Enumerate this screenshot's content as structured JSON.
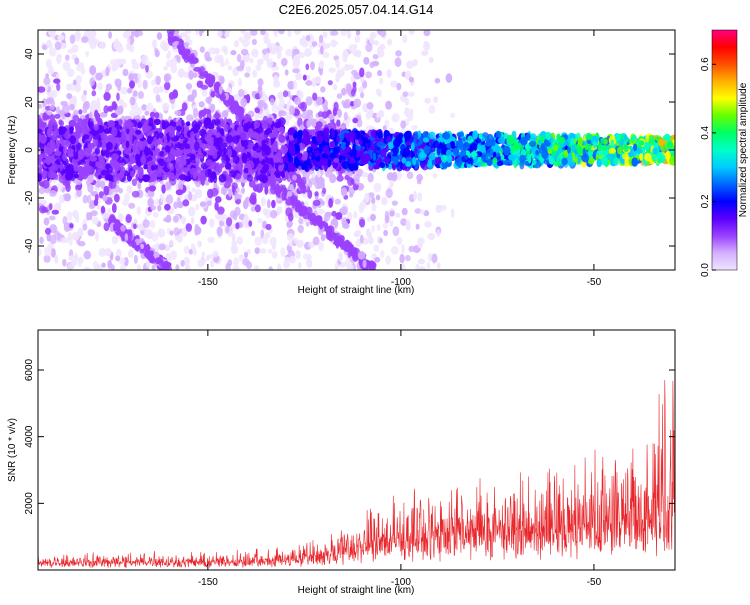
{
  "title": "C2E6.2025.057.04.14.G14",
  "chart_data": [
    {
      "type": "heatmap",
      "xlabel": "Height of straight line (km)",
      "ylabel": "Frequency (Hz)",
      "xlim": [
        -194,
        -29
      ],
      "ylim": [
        -50,
        50
      ],
      "x_ticks": [
        -150,
        -100,
        -50
      ],
      "y_ticks": [
        -40,
        -20,
        0,
        20,
        40
      ],
      "colorbar": {
        "label": "Normalized spectral amplitude",
        "range": [
          0,
          0.7
        ],
        "ticks": [
          0.0,
          0.2,
          0.4,
          0.6
        ],
        "colors": [
          "#f0e4ff",
          "#d4b0ff",
          "#9a40ff",
          "#5a00ff",
          "#0000ff",
          "#0066ff",
          "#00ccff",
          "#00ffc8",
          "#00ff64",
          "#64ff00",
          "#ffff00",
          "#ffb000",
          "#ff5000",
          "#ff0000",
          "#ff0080"
        ]
      },
      "features": {
        "main_band_center_hz": 0,
        "main_band_halfwidth_hz": 5,
        "band_start_km": -130,
        "diagonal_tracks": [
          {
            "x_start_km": -160,
            "x_end_km": -125,
            "y_start_hz": 48,
            "y_end_hz": -15
          },
          {
            "x_start_km": -140,
            "x_end_km": -107,
            "y_start_hz": -5,
            "y_end_hz": -50
          },
          {
            "x_start_km": -175,
            "x_end_km": -160,
            "y_start_hz": -30,
            "y_end_hz": -50
          }
        ]
      }
    },
    {
      "type": "line",
      "xlabel": "Height of straight line (km)",
      "ylabel": "SNR (10 * v/v)",
      "xlim": [
        -194,
        -29
      ],
      "ylim": [
        0,
        7200
      ],
      "x_ticks": [
        -150,
        -100,
        -50
      ],
      "y_ticks": [
        2000,
        4000,
        6000
      ],
      "series": [
        {
          "color": "#e8262b",
          "envelope": {
            "x": [
              -194,
              -170,
              -150,
              -130,
              -120,
              -110,
              -100,
              -90,
              -80,
              -70,
              -60,
              -50,
              -40,
              -35,
              -32,
              -30
            ],
            "baseline": [
              200,
              200,
              200,
              250,
              350,
              550,
              700,
              800,
              900,
              950,
              1000,
              1050,
              1100,
              1200,
              1400,
              1600
            ],
            "amplitude": [
              250,
              350,
              350,
              400,
              600,
              1100,
              1600,
              1800,
              1900,
              2000,
              2100,
              2300,
              2700,
              3500,
              4800,
              5600
            ]
          }
        }
      ]
    }
  ]
}
